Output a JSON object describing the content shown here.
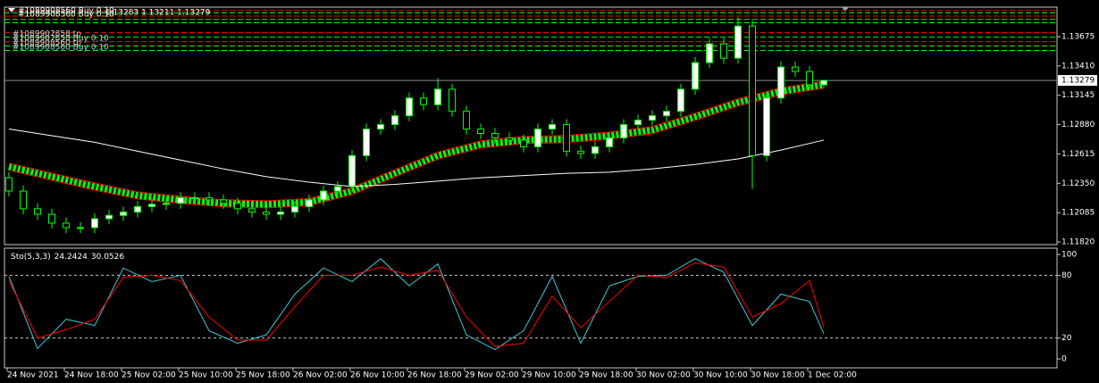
{
  "chart_data": [
    {
      "type": "candlestick",
      "header": "#1089908560 Buy 0.10",
      "quote": "1.13283 1.13211 1.13279",
      "order_labels": [
        "#1089907858 tp",
        "#1089907858 Buy 0.10",
        "#1089908560 tp",
        "#1089908560 Buy 0.10"
      ],
      "categories": [
        "24 Nov 2021",
        null,
        null,
        null,
        "24 Nov 18:00",
        null,
        null,
        null,
        "25 Nov 02:00",
        null,
        null,
        null,
        "25 Nov 10:00",
        null,
        null,
        null,
        "25 Nov 18:00",
        null,
        null,
        null,
        "26 Nov 02:00",
        null,
        null,
        null,
        "26 Nov 10:00",
        null,
        null,
        null,
        "26 Nov 18:00",
        null,
        null,
        null,
        "29 Nov 02:00",
        null,
        null,
        null,
        "29 Nov 10:00",
        null,
        null,
        null,
        "29 Nov 18:00",
        null,
        null,
        null,
        "30 Nov 02:00",
        null,
        null,
        null,
        "30 Nov 10:00",
        null,
        null,
        null,
        "30 Nov 18:00",
        null,
        null,
        null,
        "1 Dec 02:00",
        null
      ],
      "open": [
        1.124,
        1.1228,
        1.1212,
        1.1207,
        1.1199,
        1.1195,
        1.1195,
        1.1203,
        1.1206,
        1.1209,
        1.1214,
        1.1216,
        1.1217,
        1.1222,
        1.1222,
        1.122,
        1.1217,
        1.1212,
        1.1209,
        1.1207,
        1.1209,
        1.1214,
        1.122,
        1.1228,
        1.1232,
        1.126,
        1.1284,
        1.1288,
        1.1296,
        1.1312,
        1.1306,
        1.132,
        1.13,
        1.1284,
        1.128,
        1.1276,
        1.1274,
        1.1268,
        1.1284,
        1.1288,
        1.1264,
        1.1262,
        1.1268,
        1.1276,
        1.1288,
        1.1292,
        1.1296,
        1.13,
        1.132,
        1.1344,
        1.1361,
        1.1348,
        1.1377,
        1.126,
        1.1312,
        1.134,
        1.1336,
        1.1324
      ],
      "high": [
        1.1245,
        1.1233,
        1.1217,
        1.1212,
        1.1204,
        1.12,
        1.1208,
        1.1211,
        1.1214,
        1.1219,
        1.1221,
        1.1222,
        1.1227,
        1.1227,
        1.1227,
        1.1225,
        1.1222,
        1.1217,
        1.1214,
        1.1214,
        1.1219,
        1.1225,
        1.1233,
        1.1237,
        1.1265,
        1.1289,
        1.1293,
        1.1301,
        1.1317,
        1.1317,
        1.133,
        1.1325,
        1.1305,
        1.1289,
        1.1285,
        1.1281,
        1.1279,
        1.1289,
        1.1293,
        1.1293,
        1.1269,
        1.1273,
        1.1281,
        1.1293,
        1.1297,
        1.1301,
        1.1305,
        1.1325,
        1.1349,
        1.1366,
        1.1366,
        1.1385,
        1.1382,
        1.1317,
        1.1345,
        1.1345,
        1.1341,
        1.13283
      ],
      "low": [
        1.1223,
        1.1207,
        1.1202,
        1.1194,
        1.119,
        1.119,
        1.119,
        1.1198,
        1.1201,
        1.1204,
        1.1209,
        1.1211,
        1.1212,
        1.1217,
        1.1215,
        1.1212,
        1.1207,
        1.1204,
        1.1202,
        1.1202,
        1.1204,
        1.1209,
        1.1215,
        1.1223,
        1.1227,
        1.1255,
        1.1279,
        1.1283,
        1.1291,
        1.1301,
        1.1301,
        1.1295,
        1.1279,
        1.1275,
        1.1271,
        1.1269,
        1.1263,
        1.1263,
        1.1279,
        1.1259,
        1.1257,
        1.1257,
        1.1263,
        1.1271,
        1.1283,
        1.1287,
        1.1291,
        1.1295,
        1.1315,
        1.1339,
        1.1343,
        1.1343,
        1.123,
        1.1255,
        1.1307,
        1.1331,
        1.1319,
        1.13211
      ],
      "close": [
        1.1228,
        1.1212,
        1.1207,
        1.1199,
        1.1195,
        1.1195,
        1.1203,
        1.1206,
        1.1209,
        1.1214,
        1.1216,
        1.1217,
        1.1222,
        1.1222,
        1.122,
        1.1217,
        1.1212,
        1.1209,
        1.1207,
        1.1209,
        1.1214,
        1.122,
        1.1228,
        1.1232,
        1.126,
        1.1284,
        1.1288,
        1.1296,
        1.1312,
        1.1306,
        1.132,
        1.13,
        1.1284,
        1.128,
        1.1276,
        1.1274,
        1.1268,
        1.1284,
        1.1288,
        1.1264,
        1.1262,
        1.1268,
        1.1276,
        1.1288,
        1.1292,
        1.1296,
        1.13,
        1.132,
        1.1344,
        1.1361,
        1.1348,
        1.1377,
        1.126,
        1.1312,
        1.134,
        1.1336,
        1.1324,
        1.13279
      ],
      "bull_color": "#ffffff",
      "bear_color": "#000000",
      "candle_outline": "#00ff00",
      "ylim": [
        1.11796,
        1.13941
      ],
      "yticks": [
        {
          "value": 1.1182,
          "label": "1.11820"
        },
        1.12085,
        {
          "value": 1.1235,
          "label": "1.12350"
        },
        1.12615,
        {
          "value": 1.1288,
          "label": "1.12880"
        },
        1.13145,
        {
          "value": 1.1341,
          "label": "1.13410"
        },
        1.13675
      ],
      "series": [
        {
          "color": "#ff0000",
          "x": [
            0,
            3,
            6,
            9,
            12,
            15,
            18,
            21,
            24,
            27,
            30,
            33,
            36,
            39,
            42,
            45,
            48,
            51,
            54,
            57
          ],
          "values": [
            1.125,
            1.1241,
            1.1232,
            1.1224,
            1.122,
            1.1217,
            1.1216,
            1.1218,
            1.1228,
            1.1244,
            1.126,
            1.127,
            1.1274,
            1.1275,
            1.1278,
            1.1283,
            1.1295,
            1.1308,
            1.1318,
            1.1324
          ]
        },
        {
          "color": "#ffffff",
          "x": [
            0,
            3,
            6,
            9,
            12,
            15,
            18,
            21,
            24,
            27,
            30,
            33,
            36,
            39,
            42,
            45,
            48,
            51,
            54,
            57
          ],
          "values": [
            1.1284,
            1.1278,
            1.1272,
            1.1264,
            1.1256,
            1.1248,
            1.1241,
            1.1236,
            1.1232,
            1.1234,
            1.1237,
            1.124,
            1.1242,
            1.1244,
            1.1245,
            1.1248,
            1.1252,
            1.1257,
            1.1265,
            1.1274
          ]
        }
      ],
      "ribbon_color": "#00ff00",
      "current_price": 1.13279,
      "order_lines": [
        {
          "value": 1.1391,
          "color": "#ff0000"
        },
        {
          "value": 1.1389,
          "color": "#00ff00"
        },
        {
          "value": 1.1386,
          "color": "#ff0000"
        },
        {
          "value": 1.1383,
          "color": "#00ff00"
        },
        {
          "value": 1.138,
          "color": "#00ff00"
        },
        {
          "value": 1.1371,
          "color": "#ff0000"
        },
        {
          "value": 1.1367,
          "color": "#00ff00"
        },
        {
          "value": 1.1363,
          "color": "#ff0000"
        },
        {
          "value": 1.1359,
          "color": "#00ff00"
        },
        {
          "value": 1.1355,
          "color": "#00ff00"
        }
      ]
    },
    {
      "type": "line",
      "title": "Sto(5,3,3)",
      "x": [
        0,
        2,
        4,
        6,
        8,
        10,
        12,
        14,
        16,
        18,
        20,
        22,
        24,
        26,
        28,
        30,
        32,
        34,
        36,
        38,
        40,
        42,
        44,
        46,
        48,
        50,
        52,
        54,
        56,
        57
      ],
      "series": [
        {
          "color": "#40c8d8",
          "values": [
            79,
            10,
            38,
            32,
            87,
            74,
            80,
            27,
            15,
            23,
            62,
            87,
            74,
            96,
            70,
            91,
            23,
            9,
            27,
            79,
            15,
            70,
            79,
            80,
            96,
            83,
            32,
            62,
            55,
            24.2424
          ]
        },
        {
          "color": "#ff0000",
          "values": [
            75,
            20,
            28,
            38,
            78,
            80,
            75,
            40,
            18,
            18,
            50,
            80,
            80,
            88,
            80,
            85,
            40,
            12,
            15,
            60,
            30,
            55,
            80,
            78,
            92,
            88,
            40,
            53,
            75,
            30.0526
          ]
        }
      ],
      "ylim": [
        -8.5,
        106
      ],
      "yticks": [
        0,
        20,
        80,
        100
      ],
      "levels": [
        20,
        80
      ]
    }
  ]
}
